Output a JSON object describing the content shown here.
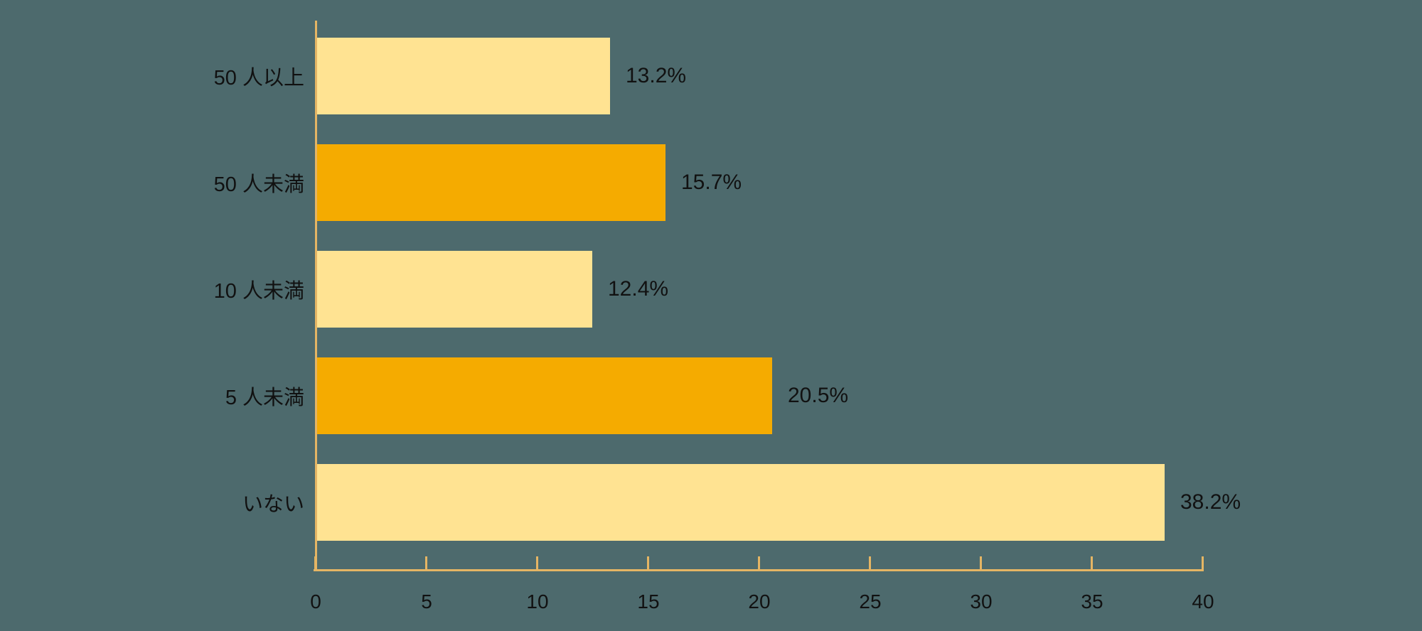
{
  "chart_data": {
    "type": "bar",
    "orientation": "horizontal",
    "title": "",
    "xlabel": "",
    "ylabel": "",
    "categories": [
      "50 人以上",
      "50 人未満",
      "10 人未満",
      "5 人未満",
      "いない"
    ],
    "values": [
      13.2,
      15.7,
      12.4,
      20.5,
      38.2
    ],
    "value_labels": [
      "13.2%",
      "15.7%",
      "12.4%",
      "20.5%",
      "38.2%"
    ],
    "bar_colors": [
      "#FFE392",
      "#F5AB00",
      "#FFE392",
      "#F5AB00",
      "#FFE392"
    ],
    "x_ticks": [
      "0",
      "5",
      "10",
      "15",
      "20",
      "25",
      "30",
      "35",
      "40"
    ],
    "x_tick_values": [
      0,
      5,
      10,
      15,
      20,
      25,
      30,
      35,
      40
    ],
    "xlim": [
      0,
      40
    ],
    "grid": false,
    "legend": false,
    "colors": {
      "background": "#4D6A6D",
      "axis": "#E5B564",
      "text": "#111111",
      "bar_light": "#FFE392",
      "bar_accent": "#F5AB00"
    }
  }
}
